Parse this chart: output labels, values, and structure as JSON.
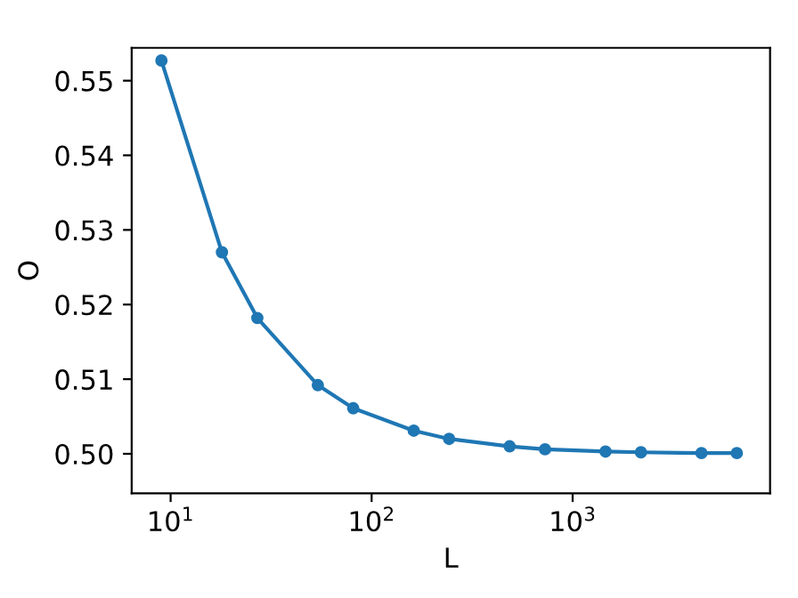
{
  "chart_data": {
    "type": "line",
    "xlabel": "L",
    "ylabel": "O",
    "log": "x",
    "x": [
      9,
      18,
      27,
      54,
      81,
      162,
      243,
      486,
      729,
      1458,
      2187,
      4374,
      6561
    ],
    "series": [
      {
        "color": "#1f77b4",
        "values": [
          0.5527,
          0.527,
          0.5182,
          0.5092,
          0.5061,
          0.5031,
          0.502,
          0.501,
          0.5006,
          0.5003,
          0.5002,
          0.5001,
          0.5001
        ]
      }
    ],
    "marker": "circle",
    "line_style": "solid",
    "grid": false,
    "legend": false,
    "xlim": [
      6.4,
      9600
    ],
    "xticks": [
      {
        "value": 10,
        "label": "10$^{1}$"
      },
      {
        "value": 100,
        "label": "10$^{2}$"
      },
      {
        "value": 1000,
        "label": "10$^{3}$"
      }
    ],
    "ylim": [
      0.4947,
      0.5544
    ],
    "yticks": [
      {
        "value": 0.5,
        "label": "0.50"
      },
      {
        "value": 0.51,
        "label": "0.51"
      },
      {
        "value": 0.52,
        "label": "0.52"
      },
      {
        "value": 0.53,
        "label": "0.53"
      },
      {
        "value": 0.54,
        "label": "0.54"
      },
      {
        "value": 0.55,
        "label": "0.55"
      }
    ]
  }
}
